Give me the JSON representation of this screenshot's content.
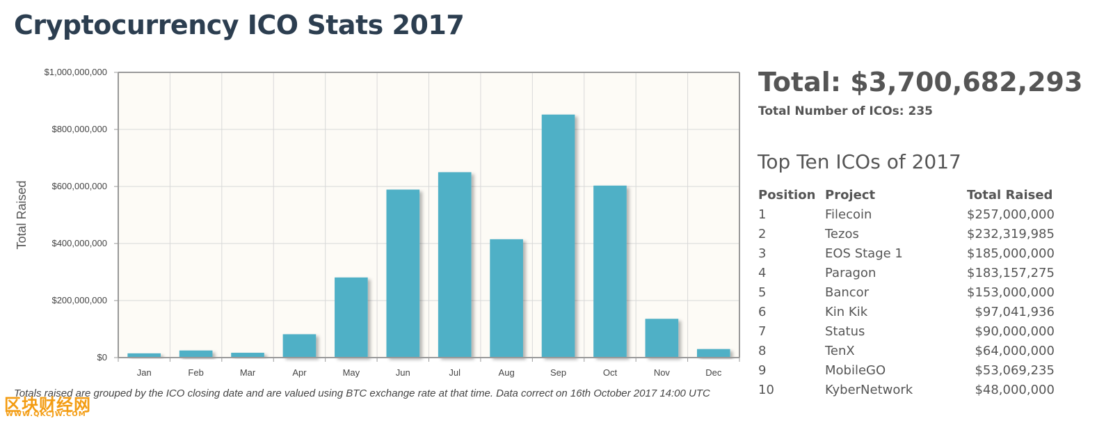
{
  "page": {
    "title": "Cryptocurrency ICO Stats 2017",
    "footnote": "Totals raised are grouped by the ICO closing date and are valued using BTC exchange rate at that time. Data correct on 16th October 2017 14:00 UTC"
  },
  "summary": {
    "total": "Total: $3,700,682,293",
    "count": "Total Number of ICOs: 235"
  },
  "top_ten": {
    "title": "Top Ten ICOs of 2017",
    "headers": [
      "Position",
      "Project",
      "Total Raised"
    ],
    "rows": [
      [
        "1",
        "Filecoin",
        "$257,000,000"
      ],
      [
        "2",
        "Tezos",
        "$232,319,985"
      ],
      [
        "3",
        "EOS Stage 1",
        "$185,000,000"
      ],
      [
        "4",
        "Paragon",
        "$183,157,275"
      ],
      [
        "5",
        "Bancor",
        "$153,000,000"
      ],
      [
        "6",
        "Kin Kik",
        "$97,041,936"
      ],
      [
        "7",
        "Status",
        "$90,000,000"
      ],
      [
        "8",
        "TenX",
        "$64,000,000"
      ],
      [
        "9",
        "MobileGO",
        "$53,069,235"
      ],
      [
        "10",
        "KyberNetwork",
        "$48,000,000"
      ]
    ]
  },
  "watermark": {
    "text": "区块财经网",
    "sub": "WWW.QKCJW.COM"
  },
  "chart_data": {
    "type": "bar",
    "title": "",
    "xlabel": "",
    "ylabel": "Total Raised",
    "categories": [
      "Jan",
      "Feb",
      "Mar",
      "Apr",
      "May",
      "Jun",
      "Jul",
      "Aug",
      "Sep",
      "Oct",
      "Nov",
      "Dec"
    ],
    "values": [
      15000000,
      25000000,
      17000000,
      82000000,
      281000000,
      589000000,
      650000000,
      415000000,
      852000000,
      603000000,
      136000000,
      30000000
    ],
    "ylim": [
      0,
      1000000000
    ],
    "yticks": [
      0,
      200000000,
      400000000,
      600000000,
      800000000,
      1000000000
    ],
    "ytick_labels": [
      "$0",
      "$200,000,000",
      "$400,000,000",
      "$600,000,000",
      "$800,000,000",
      "$1,000,000,000"
    ],
    "grid": true,
    "colors": {
      "bar": "#4fb0c6",
      "plot_bg": "#fdfbf6",
      "grid": "#d8d8d8",
      "axis": "#999999"
    }
  }
}
